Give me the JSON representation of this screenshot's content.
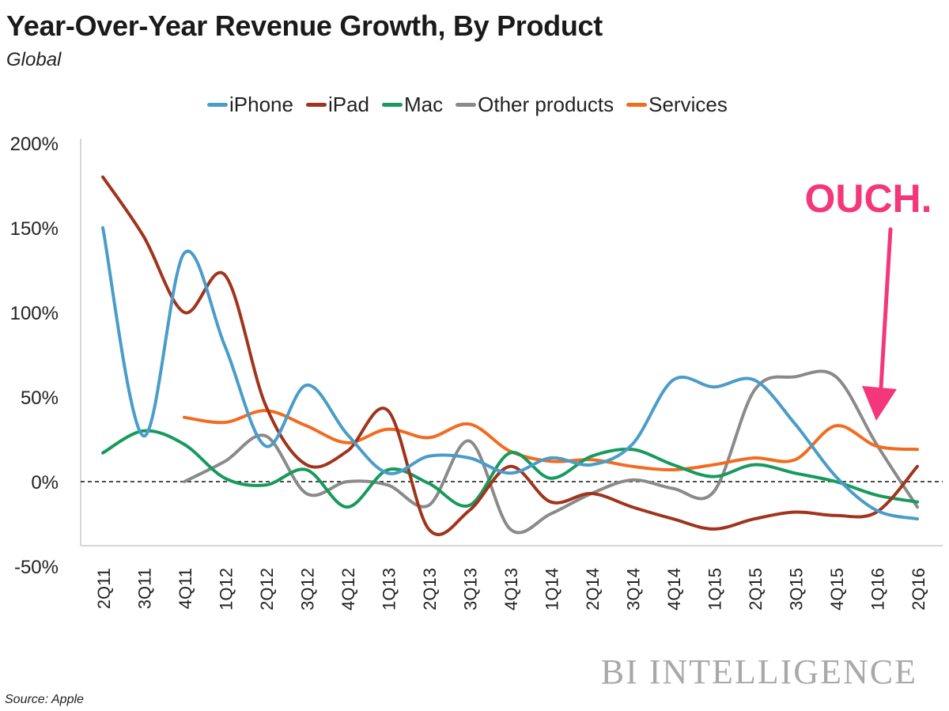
{
  "header": {
    "title": "Year-Over-Year Revenue Growth, By Product",
    "subtitle": "Global"
  },
  "footer": {
    "source": "Source: Apple",
    "brand": "BI INTELLIGENCE"
  },
  "annotation": {
    "text": "OUCH.",
    "color": "#f4367b",
    "points_to": "1Q16"
  },
  "chart_data": {
    "type": "line",
    "title": "Year-Over-Year Revenue Growth, By Product",
    "subtitle": "Global",
    "xlabel": "",
    "ylabel": "",
    "ylim": [
      -50,
      200
    ],
    "yticks": [
      -50,
      0,
      50,
      100,
      150,
      200
    ],
    "ytick_labels": [
      "-50%",
      "0%",
      "50%",
      "100%",
      "150%",
      "200%"
    ],
    "legend_position": "top",
    "zero_line": "dashed",
    "categories": [
      "2Q11",
      "3Q11",
      "4Q11",
      "1Q12",
      "2Q12",
      "3Q12",
      "4Q12",
      "1Q13",
      "2Q13",
      "3Q13",
      "4Q13",
      "1Q14",
      "2Q14",
      "3Q14",
      "4Q14",
      "1Q15",
      "2Q15",
      "3Q15",
      "4Q15",
      "1Q16",
      "2Q16"
    ],
    "series": [
      {
        "name": "iPhone",
        "color": "#4a9cc9",
        "values": [
          150,
          27,
          135,
          80,
          21,
          57,
          28,
          5,
          15,
          14,
          5,
          14,
          10,
          22,
          60,
          56,
          60,
          34,
          3,
          -17,
          -22
        ]
      },
      {
        "name": "iPad",
        "color": "#a0341c",
        "values": [
          180,
          145,
          100,
          122,
          45,
          10,
          18,
          42,
          -28,
          -17,
          9,
          -12,
          -7,
          -15,
          -22,
          -28,
          -22,
          -18,
          -20,
          -18,
          9
        ]
      },
      {
        "name": "Mac",
        "color": "#179a5c",
        "values": [
          17,
          30,
          22,
          2,
          -2,
          7,
          -15,
          7,
          -1,
          -14,
          17,
          2,
          15,
          19,
          10,
          3,
          10,
          5,
          0,
          -8,
          -12
        ]
      },
      {
        "name": "Other products",
        "color": "#8a8a8a",
        "values": [
          null,
          null,
          0,
          12,
          27,
          -7,
          0,
          -2,
          -14,
          24,
          -28,
          -19,
          -7,
          1,
          -4,
          -6,
          54,
          62,
          62,
          22,
          -15
        ]
      },
      {
        "name": "Services",
        "color": "#f26b1f",
        "values": [
          null,
          null,
          38,
          35,
          42,
          33,
          23,
          31,
          26,
          34,
          18,
          12,
          13,
          9,
          7,
          10,
          14,
          13,
          33,
          21,
          19
        ]
      }
    ]
  }
}
